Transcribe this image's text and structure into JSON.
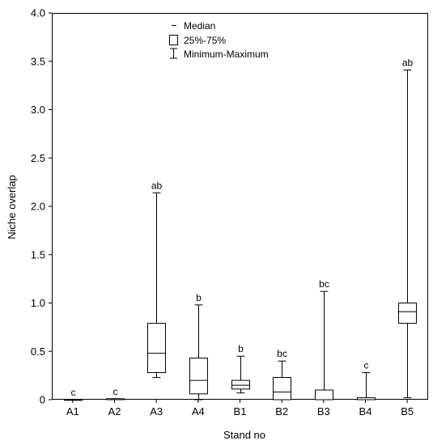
{
  "chart_data": {
    "type": "boxplot",
    "xlabel": "Stand no",
    "ylabel": "Niche overlap",
    "ylim": [
      0,
      4.0
    ],
    "yticks": [
      "0",
      "0.5",
      "1.0",
      "1.5",
      "2.0",
      "2.5",
      "3.0",
      "3.5",
      "4.0"
    ],
    "categories": [
      "A1",
      "A2",
      "A3",
      "A4",
      "B1",
      "B2",
      "B3",
      "B4",
      "B5"
    ],
    "boxes": [
      {
        "category": "A1",
        "min": 0.0,
        "q1": 0.0,
        "median": 0.0,
        "q3": 0.0,
        "max": 0.0,
        "group": "c"
      },
      {
        "category": "A2",
        "min": 0.0,
        "q1": 0.0,
        "median": 0.0,
        "q3": 0.01,
        "max": 0.01,
        "group": "c"
      },
      {
        "category": "A3",
        "min": 0.23,
        "q1": 0.28,
        "median": 0.48,
        "q3": 0.79,
        "max": 2.14,
        "group": "ab"
      },
      {
        "category": "A4",
        "min": 0.0,
        "q1": 0.06,
        "median": 0.2,
        "q3": 0.43,
        "max": 0.98,
        "group": "b"
      },
      {
        "category": "B1",
        "min": 0.07,
        "q1": 0.11,
        "median": 0.15,
        "q3": 0.2,
        "max": 0.45,
        "group": "b"
      },
      {
        "category": "B2",
        "min": 0.0,
        "q1": 0.0,
        "median": 0.08,
        "q3": 0.23,
        "max": 0.4,
        "group": "bc"
      },
      {
        "category": "B3",
        "min": 0.0,
        "q1": 0.0,
        "median": 0.0,
        "q3": 0.1,
        "max": 1.12,
        "group": "bc"
      },
      {
        "category": "B4",
        "min": 0.0,
        "q1": 0.0,
        "median": 0.0,
        "q3": 0.02,
        "max": 0.28,
        "group": "c"
      },
      {
        "category": "B5",
        "min": 0.02,
        "q1": 0.79,
        "median": 0.91,
        "q3": 1.0,
        "max": 3.41,
        "group": "ab"
      }
    ],
    "legend": {
      "position": "top-left",
      "entries": {
        "median": "Median",
        "box": "25%-75%",
        "whisker": "Minimum-Maximum"
      }
    },
    "grid": false
  }
}
